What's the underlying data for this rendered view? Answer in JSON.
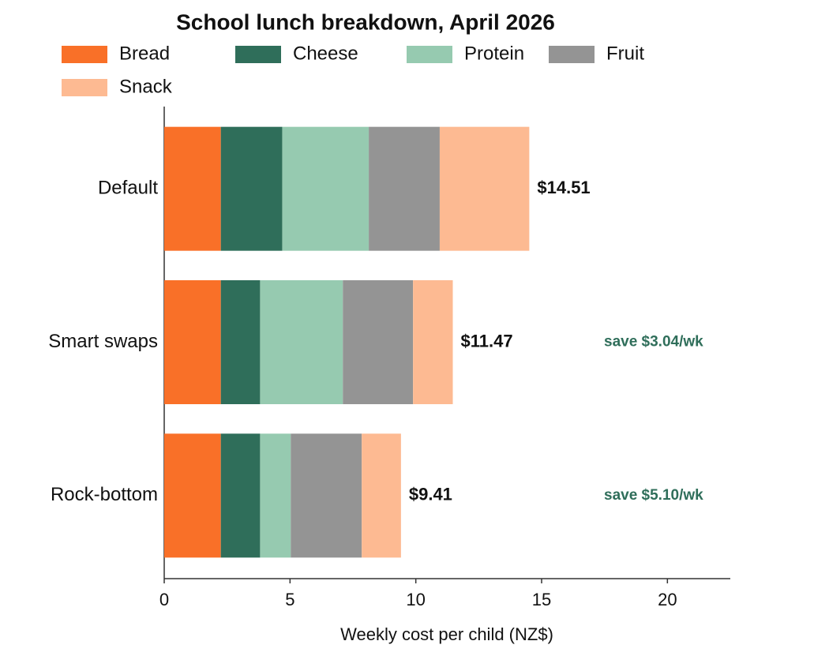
{
  "chart_data": {
    "type": "stacked_barh",
    "title": "School lunch breakdown, April 2026",
    "x_label": "Weekly cost per child (NZ$)",
    "categories": [
      "Default",
      "Smart swaps",
      "Rock-bottom"
    ],
    "series": [
      {
        "name": "Bread",
        "color": "#f97028",
        "values": [
          2.25,
          2.25,
          2.25
        ]
      },
      {
        "name": "Cheese",
        "color": "#2f6e5a",
        "values": [
          2.44,
          1.56,
          1.56
        ]
      },
      {
        "name": "Protein",
        "color": "#96cab0",
        "values": [
          3.44,
          3.29,
          1.22
        ]
      },
      {
        "name": "Fruit",
        "color": "#949494",
        "values": [
          2.82,
          2.79,
          2.82
        ]
      },
      {
        "name": "Snack",
        "color": "#fdba92",
        "values": [
          3.56,
          1.58,
          1.56
        ]
      }
    ],
    "totals": {
      "values": [
        14.51,
        11.47,
        9.41
      ],
      "value_labels": [
        "$14.51",
        "$11.47",
        "$9.41"
      ]
    },
    "savings": {
      "color": "#2f6e5a",
      "values": [
        null,
        3.04,
        5.1
      ],
      "value_labels": [
        null,
        "save $3.04/wk",
        "save $5.10/wk"
      ]
    },
    "xlim": [
      0,
      22.5
    ],
    "xticks": [
      0,
      5,
      10,
      15,
      20
    ]
  }
}
